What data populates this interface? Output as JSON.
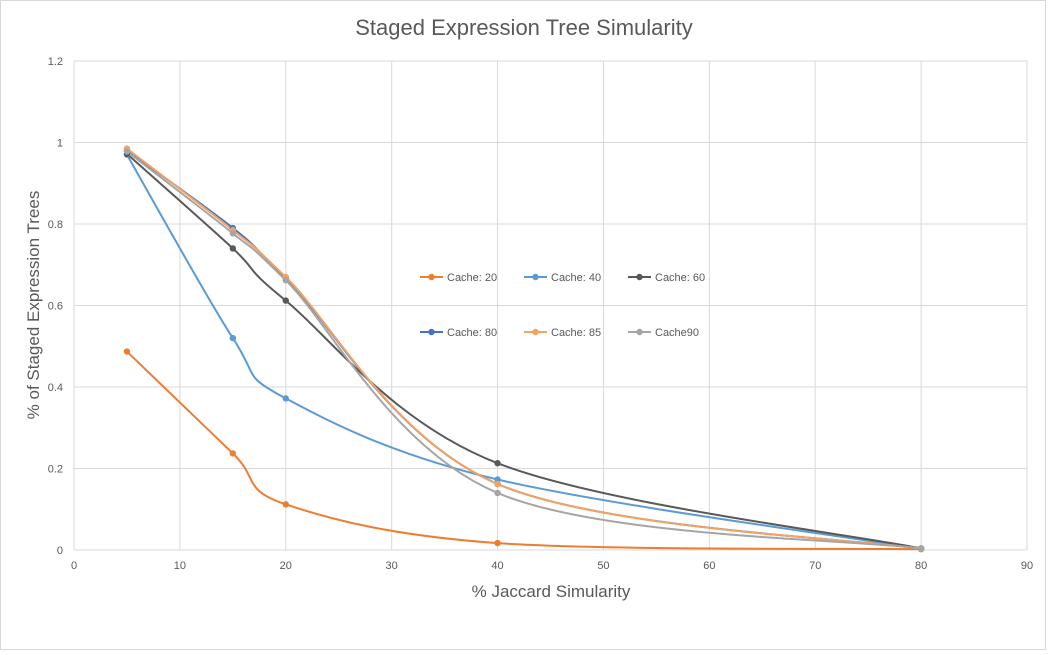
{
  "chart_data": {
    "type": "line",
    "title": "Staged Expression Tree Simularity",
    "xlabel": "% Jaccard Simularity",
    "ylabel": "% of Staged Expression Trees",
    "xlim": [
      0,
      90
    ],
    "ylim": [
      0,
      1.2
    ],
    "x_ticks": [
      "0",
      "10",
      "20",
      "30",
      "40",
      "50",
      "60",
      "70",
      "80",
      "90"
    ],
    "y_ticks": [
      "0",
      "0.2",
      "0.4",
      "0.6",
      "0.8",
      "1",
      "1.2"
    ],
    "grid": true,
    "smooth": true,
    "legend_position": "inside-center",
    "x": [
      5,
      15,
      20,
      40,
      80
    ],
    "series": [
      {
        "name": "Cache: 20",
        "color": "#ED7D31",
        "values": [
          0.487,
          0.237,
          0.112,
          0.017,
          0.002
        ]
      },
      {
        "name": "Cache: 40",
        "color": "#5B9BD5",
        "values": [
          0.97,
          0.52,
          0.372,
          0.173,
          0.003
        ]
      },
      {
        "name": "Cache: 60",
        "color": "#595959",
        "values": [
          0.972,
          0.74,
          0.612,
          0.213,
          0.004
        ]
      },
      {
        "name": "Cache: 80",
        "color": "#4472C4",
        "values": [
          0.98,
          0.79,
          0.668,
          0.162,
          0.003
        ]
      },
      {
        "name": "Cache: 85",
        "color": "#F4A261",
        "values": [
          0.985,
          0.785,
          0.67,
          0.162,
          0.003
        ]
      },
      {
        "name": "Cache90",
        "color": "#A5A5A5",
        "values": [
          0.978,
          0.777,
          0.662,
          0.14,
          0.004
        ]
      }
    ]
  }
}
